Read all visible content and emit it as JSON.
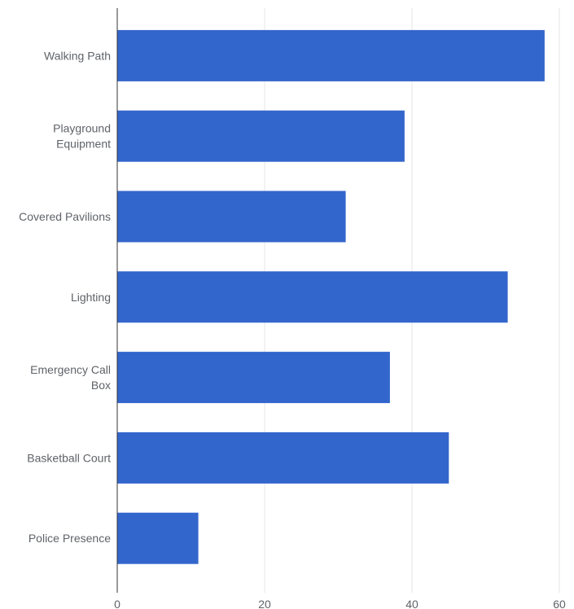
{
  "chart_data": {
    "type": "bar",
    "orientation": "horizontal",
    "categories": [
      [
        "Walking Path"
      ],
      [
        "Playground",
        "Equipment"
      ],
      [
        "Covered Pavilions"
      ],
      [
        "Lighting"
      ],
      [
        "Emergency Call",
        "Box"
      ],
      [
        "Basketball Court"
      ],
      [
        "Police Presence"
      ]
    ],
    "values": [
      58,
      39,
      31,
      53,
      37,
      45,
      11
    ],
    "xlim": [
      0,
      60
    ],
    "x_ticks": [
      0,
      20,
      40,
      60
    ],
    "title": "",
    "xlabel": "",
    "ylabel": "",
    "grid": "vertical",
    "legend": "none",
    "colors": {
      "bar": "#3366cc",
      "grid": "#e6e6e6",
      "axis": "#333333",
      "text": "#5f6368"
    }
  }
}
